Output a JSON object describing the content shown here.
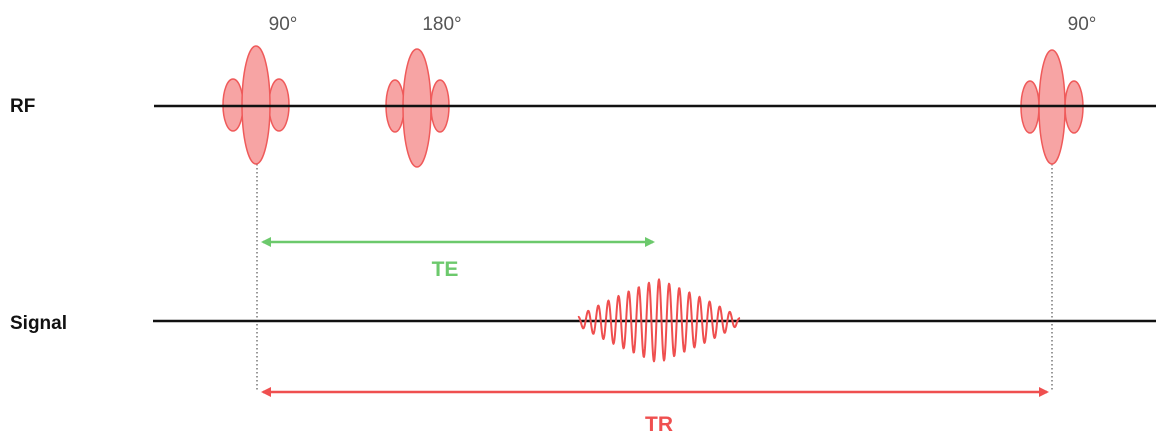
{
  "rows": {
    "rf": "RF",
    "signal": "Signal"
  },
  "pulses": {
    "first": "90°",
    "second": "180°",
    "third": "90°"
  },
  "intervals": {
    "te": "TE",
    "tr": "TR"
  },
  "colors": {
    "pulse_fill": "#f7a4a4",
    "pulse_stroke": "#ef5a5a",
    "te": "#6cc96c",
    "tr": "#ef4f4f",
    "signal": "#ef4f4f",
    "baseline": "#111111"
  }
}
